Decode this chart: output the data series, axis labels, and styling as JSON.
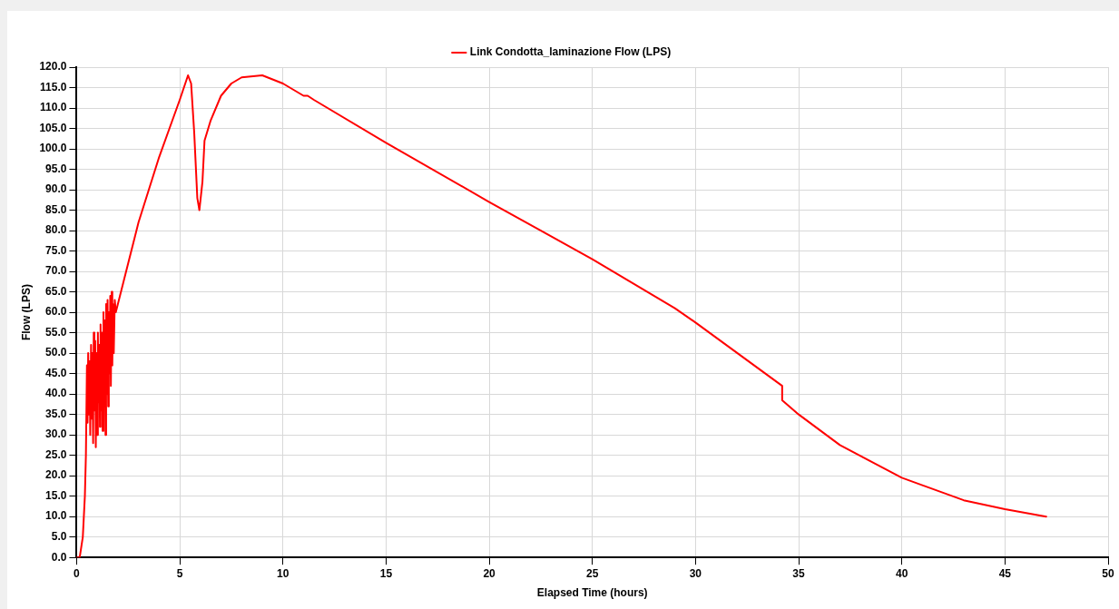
{
  "chart_data": {
    "type": "line",
    "xlabel": "Elapsed Time (hours)",
    "ylabel": "Flow (LPS)",
    "legend": "top",
    "grid": true,
    "marker": "none",
    "line_style": "solid",
    "xlim": [
      0,
      50
    ],
    "xticks": [
      0,
      5,
      10,
      15,
      20,
      25,
      30,
      35,
      40,
      45,
      50
    ],
    "ylim": [
      0,
      120
    ],
    "yticks": [
      {
        "value": 0,
        "label": "0.0"
      },
      {
        "value": 5,
        "label": "5.0"
      },
      {
        "value": 10,
        "label": "10.0"
      },
      {
        "value": 15,
        "label": "15.0"
      },
      {
        "value": 20,
        "label": "20.0"
      },
      {
        "value": 25,
        "label": "25.0"
      },
      {
        "value": 30,
        "label": "30.0"
      },
      {
        "value": 35,
        "label": "35.0"
      },
      {
        "value": 40,
        "label": "40.0"
      },
      {
        "value": 45,
        "label": "45.0"
      },
      {
        "value": 50,
        "label": "50.0"
      },
      {
        "value": 55,
        "label": "55.0"
      },
      {
        "value": 60,
        "label": "60.0"
      },
      {
        "value": 65,
        "label": "65.0"
      },
      {
        "value": 70,
        "label": "70.0"
      },
      {
        "value": 75,
        "label": "75.0"
      },
      {
        "value": 80,
        "label": "80.0"
      },
      {
        "value": 85,
        "label": "85.0"
      },
      {
        "value": 90,
        "label": "90.0"
      },
      {
        "value": 95,
        "label": "95.0"
      },
      {
        "value": 100,
        "label": "100.0"
      },
      {
        "value": 105,
        "label": "105.0"
      },
      {
        "value": 110,
        "label": "110.0"
      },
      {
        "value": 115,
        "label": "115.0"
      },
      {
        "value": 120,
        "label": "120.0"
      }
    ],
    "series": [
      {
        "name": "Link Condotta_laminazione Flow (LPS)",
        "color": "#ff0000",
        "x": [
          0,
          0.15,
          0.3,
          0.4,
          0.45,
          0.5,
          0.53,
          0.56,
          0.6,
          0.63,
          0.66,
          0.7,
          0.73,
          0.76,
          0.8,
          0.83,
          0.86,
          0.9,
          0.93,
          0.96,
          1.0,
          1.03,
          1.06,
          1.1,
          1.13,
          1.16,
          1.2,
          1.23,
          1.26,
          1.3,
          1.33,
          1.36,
          1.4,
          1.43,
          1.46,
          1.5,
          1.53,
          1.56,
          1.6,
          1.63,
          1.66,
          1.7,
          1.73,
          1.76,
          1.8,
          1.85,
          1.9,
          2,
          2.5,
          3,
          3.5,
          4,
          4.5,
          5,
          5.4,
          5.55,
          5.7,
          5.85,
          5.95,
          6.1,
          6.2,
          6.5,
          7,
          7.5,
          8,
          9,
          9.5,
          10,
          11,
          11.2,
          11.5,
          15,
          20,
          25,
          28,
          29,
          30,
          34.2,
          34.2,
          35,
          37,
          40,
          43,
          45,
          47
        ],
        "values": [
          0,
          0,
          5,
          15,
          25,
          47,
          33,
          50,
          35,
          48,
          30,
          52,
          34,
          50,
          28,
          55,
          36,
          53,
          27,
          50,
          30,
          55,
          38,
          52,
          32,
          57,
          36,
          55,
          31,
          60,
          38,
          58,
          30,
          62,
          40,
          63,
          37,
          60,
          45,
          64,
          42,
          65,
          47,
          62,
          50,
          63,
          60,
          62,
          72,
          82,
          90,
          98,
          105,
          112,
          118,
          116,
          104,
          88,
          85,
          92,
          102,
          107,
          113,
          116,
          117.5,
          118,
          117,
          116,
          113,
          113,
          112,
          101.5,
          87,
          73,
          64,
          61,
          57.5,
          42,
          38.5,
          35,
          27.5,
          19.5,
          14,
          11.8,
          10
        ]
      }
    ]
  }
}
